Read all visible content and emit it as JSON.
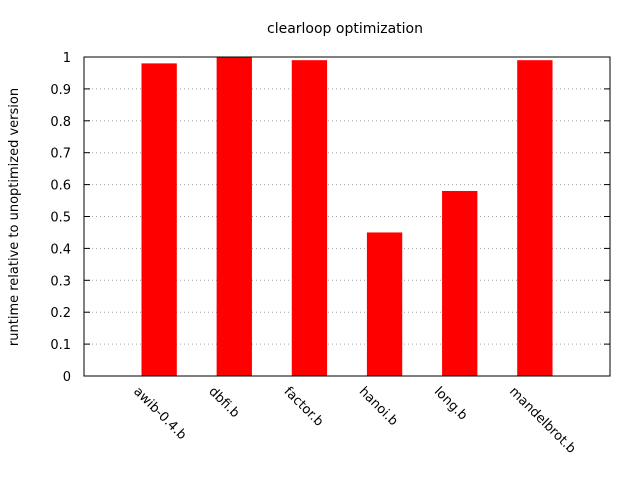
{
  "chart_data": {
    "type": "bar",
    "title": "clearloop optimization",
    "xlabel": "",
    "ylabel": "runtime relative to unoptimized version",
    "categories": [
      "awib-0.4.b",
      "dbfi.b",
      "factor.b",
      "hanoi.b",
      "long.b",
      "mandelbrot.b"
    ],
    "values": [
      0.98,
      1.0,
      0.99,
      0.45,
      0.58,
      0.99
    ],
    "ylim": [
      0,
      1
    ],
    "yticks": [
      "0",
      "0.1",
      "0.2",
      "0.3",
      "0.4",
      "0.5",
      "0.6",
      "0.7",
      "0.8",
      "0.9",
      "1"
    ],
    "grid": true,
    "legend": "none",
    "bar_color": "#ff0000",
    "grid_color": "#a0a0a0",
    "axis_color": "#000000"
  }
}
